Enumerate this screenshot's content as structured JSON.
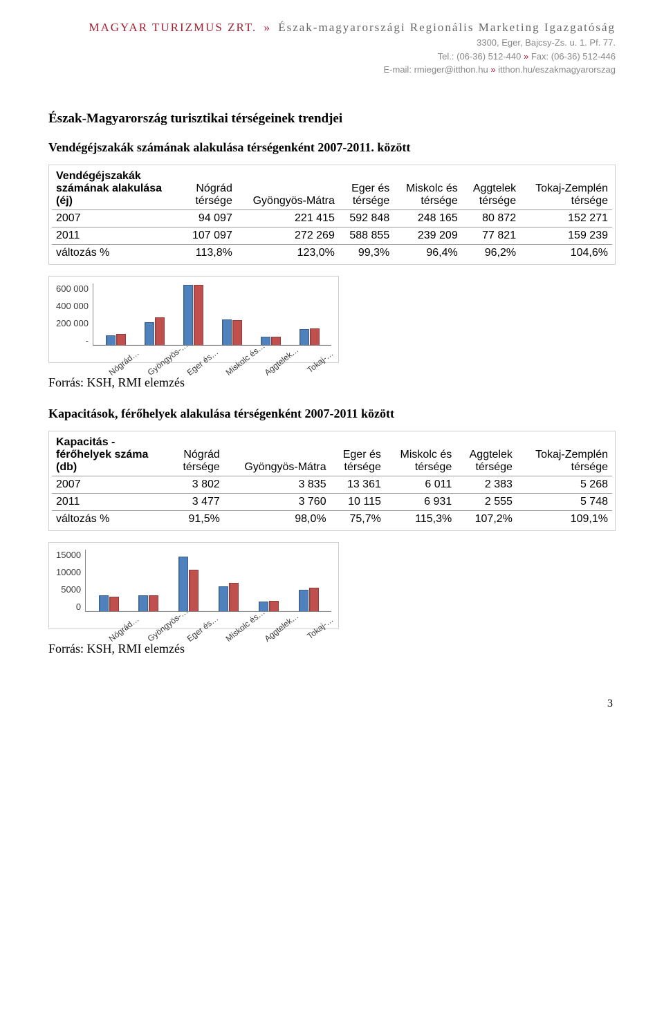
{
  "header": {
    "brand": "MAGYAR TURIZMUS ZRT.",
    "subhead": "Észak-magyarországi Regionális Marketing Igazgatóság",
    "address": "3300, Eger, Bajcsy-Zs. u. 1. Pf. 77.",
    "tel_label": "Tel.:",
    "tel": "(06-36) 512-440",
    "fax_label": "Fax:",
    "fax": "(06-36) 512-446",
    "email_label": "E-mail:",
    "email": "rmieger@itthon.hu",
    "web": "itthon.hu/eszakmagyarorszag",
    "chevron": "»",
    "accent_color": "#a02030",
    "muted_color": "#888888"
  },
  "titles": {
    "main": "Észak-Magyarország turisztikai térségeinek trendjei",
    "sub1": "Vendégéjszakák számának alakulása térségenként 2007-2011. között",
    "source1": "Forrás: KSH, RMI elemzés",
    "sub2": "Kapacitások, férőhelyek alakulása térségenként 2007-2011 között",
    "source2": "Forrás: KSH, RMI elemzés"
  },
  "table1": {
    "corner_l1": "Vendégéjszakák",
    "corner_l2": "számának alakulása",
    "corner_l3": "(éj)",
    "columns": [
      "Nógrád térsége",
      "Gyöngyös-Mátra",
      "Eger és térsége",
      "Miskolc és térsége",
      "Aggtelek térsége",
      "Tokaj-Zemplén térsége"
    ],
    "rows": [
      {
        "label": "2007",
        "cells": [
          "94 097",
          "221 415",
          "592 848",
          "248 165",
          "80 872",
          "152 271"
        ]
      },
      {
        "label": "2011",
        "cells": [
          "107 097",
          "272 269",
          "588 855",
          "239 209",
          "77 821",
          "159 239"
        ]
      },
      {
        "label": "változás %",
        "cells": [
          "113,8%",
          "123,0%",
          "99,3%",
          "96,4%",
          "96,2%",
          "104,6%"
        ]
      }
    ]
  },
  "chart1": {
    "type": "bar",
    "y_ticks": [
      "600 000",
      "400 000",
      "200 000",
      "-"
    ],
    "y_max": 600000,
    "x_labels": [
      "Nógrád…",
      "Gyöngyös-…",
      "Eger és…",
      "Miskolc és…",
      "Aggtelek…",
      "Tokaj-…"
    ],
    "series_colors": [
      "#4f81bd",
      "#c0504d"
    ],
    "background_color": "#ffffff",
    "border_color": "#d0d0d0",
    "values_2007": [
      94097,
      221415,
      592848,
      248165,
      80872,
      152271
    ],
    "values_2011": [
      107097,
      272269,
      588855,
      239209,
      77821,
      159239
    ]
  },
  "table2": {
    "corner_l1": "Kapacitás -",
    "corner_l2": "férőhelyek száma",
    "corner_l3": "(db)",
    "columns": [
      "Nógrád térsége",
      "Gyöngyös-Mátra",
      "Eger és térsége",
      "Miskolc és térsége",
      "Aggtelek térsége",
      "Tokaj-Zemplén térsége"
    ],
    "rows": [
      {
        "label": "2007",
        "cells": [
          "3 802",
          "3 835",
          "13 361",
          "6 011",
          "2 383",
          "5 268"
        ]
      },
      {
        "label": "2011",
        "cells": [
          "3 477",
          "3 760",
          "10 115",
          "6 931",
          "2 555",
          "5 748"
        ]
      },
      {
        "label": "változás %",
        "cells": [
          "91,5%",
          "98,0%",
          "75,7%",
          "115,3%",
          "107,2%",
          "109,1%"
        ]
      }
    ]
  },
  "chart2": {
    "type": "bar",
    "y_ticks": [
      "15000",
      "10000",
      "5000",
      "0"
    ],
    "y_max": 15000,
    "x_labels": [
      "Nógrád…",
      "Gyöngyös-…",
      "Eger és…",
      "Miskolc és…",
      "Aggtelek…",
      "Tokaj-…"
    ],
    "series_colors": [
      "#4f81bd",
      "#c0504d"
    ],
    "background_color": "#ffffff",
    "border_color": "#d0d0d0",
    "values_2007": [
      3802,
      3835,
      13361,
      6011,
      2383,
      5268
    ],
    "values_2011": [
      3477,
      3760,
      10115,
      6931,
      2555,
      5748
    ]
  },
  "page_number": "3"
}
